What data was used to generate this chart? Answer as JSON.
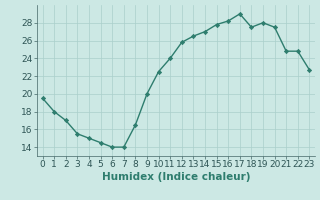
{
  "xlabel": "Humidex (Indice chaleur)",
  "x": [
    0,
    1,
    2,
    3,
    4,
    5,
    6,
    7,
    8,
    9,
    10,
    11,
    12,
    13,
    14,
    15,
    16,
    17,
    18,
    19,
    20,
    21,
    22,
    23
  ],
  "y": [
    19.5,
    18.0,
    17.0,
    15.5,
    15.0,
    14.5,
    14.0,
    14.0,
    16.5,
    20.0,
    22.5,
    24.0,
    25.8,
    26.5,
    27.0,
    27.8,
    28.2,
    29.0,
    27.5,
    28.0,
    27.5,
    24.8,
    24.8,
    22.7
  ],
  "line_color": "#2e7d6e",
  "marker": "D",
  "marker_size": 2.2,
  "bg_color": "#cce8e4",
  "grid_color": "#aacfcb",
  "ylim": [
    13.0,
    30.0
  ],
  "yticks": [
    14,
    16,
    18,
    20,
    22,
    24,
    26,
    28
  ],
  "xlim": [
    -0.5,
    23.5
  ],
  "tick_fontsize": 6.5,
  "label_fontsize": 7.5,
  "lw": 1.0
}
